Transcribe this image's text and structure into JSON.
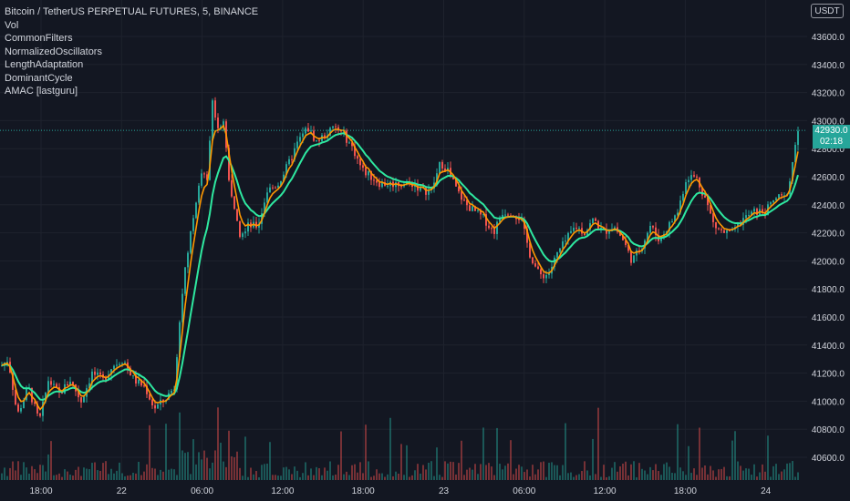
{
  "legend": {
    "title": "Bitcoin / TetherUS PERPETUAL FUTURES, 5, BINANCE",
    "indicators": [
      "Vol",
      "CommonFilters",
      "NormalizedOscillators",
      "LengthAdaptation",
      "DominantCycle",
      "AMAC [lastguru]"
    ]
  },
  "currency_button": "USDT",
  "last_price": {
    "price": "42930.0",
    "countdown": "02:18"
  },
  "colors": {
    "background": "#131722",
    "up": "#26a69a",
    "down": "#ef5350",
    "fast_line": "#ff9800",
    "slow_line": "#2ee8a0",
    "grid": "#1e222d",
    "text": "#d1d4dc"
  },
  "chart_data": {
    "type": "candlestick",
    "symbol": "Bitcoin / TetherUS PERPETUAL FUTURES",
    "interval": "5",
    "exchange": "BINANCE",
    "x_tick_labels": [
      "18:00",
      "22",
      "06:00",
      "12:00",
      "18:00",
      "23",
      "06:00",
      "12:00",
      "18:00",
      "24"
    ],
    "y_tick_labels": [
      40600,
      40800,
      41000,
      41200,
      41400,
      41600,
      41800,
      42000,
      42200,
      42400,
      42600,
      42800,
      43000,
      43200,
      43400,
      43600
    ],
    "ylim": [
      40500,
      43750
    ],
    "price_path": [
      [
        0,
        41250
      ],
      [
        8,
        41300
      ],
      [
        18,
        40900
      ],
      [
        30,
        41100
      ],
      [
        42,
        40850
      ],
      [
        52,
        41150
      ],
      [
        64,
        41050
      ],
      [
        76,
        41150
      ],
      [
        88,
        41000
      ],
      [
        100,
        41200
      ],
      [
        112,
        41150
      ],
      [
        122,
        41250
      ],
      [
        134,
        41300
      ],
      [
        146,
        41150
      ],
      [
        158,
        41100
      ],
      [
        168,
        40950
      ],
      [
        178,
        41000
      ],
      [
        190,
        41100
      ],
      [
        198,
        41750
      ],
      [
        208,
        42200
      ],
      [
        218,
        42600
      ],
      [
        226,
        42600
      ],
      [
        232,
        43150
      ],
      [
        238,
        42950
      ],
      [
        244,
        43000
      ],
      [
        250,
        42600
      ],
      [
        256,
        42350
      ],
      [
        262,
        42200
      ],
      [
        270,
        42250
      ],
      [
        282,
        42250
      ],
      [
        292,
        42500
      ],
      [
        304,
        42550
      ],
      [
        316,
        42700
      ],
      [
        326,
        42850
      ],
      [
        336,
        42950
      ],
      [
        346,
        42850
      ],
      [
        356,
        42900
      ],
      [
        366,
        42950
      ],
      [
        376,
        42900
      ],
      [
        386,
        42800
      ],
      [
        396,
        42650
      ],
      [
        406,
        42600
      ],
      [
        416,
        42550
      ],
      [
        428,
        42550
      ],
      [
        440,
        42550
      ],
      [
        452,
        42550
      ],
      [
        462,
        42500
      ],
      [
        472,
        42500
      ],
      [
        482,
        42700
      ],
      [
        490,
        42650
      ],
      [
        500,
        42500
      ],
      [
        510,
        42400
      ],
      [
        520,
        42350
      ],
      [
        530,
        42300
      ],
      [
        540,
        42200
      ],
      [
        550,
        42350
      ],
      [
        560,
        42350
      ],
      [
        570,
        42300
      ],
      [
        580,
        42050
      ],
      [
        590,
        41900
      ],
      [
        600,
        41900
      ],
      [
        610,
        42050
      ],
      [
        620,
        42150
      ],
      [
        630,
        42250
      ],
      [
        640,
        42200
      ],
      [
        650,
        42300
      ],
      [
        660,
        42200
      ],
      [
        672,
        42250
      ],
      [
        682,
        42150
      ],
      [
        692,
        42000
      ],
      [
        702,
        42100
      ],
      [
        712,
        42250
      ],
      [
        722,
        42150
      ],
      [
        732,
        42250
      ],
      [
        742,
        42350
      ],
      [
        752,
        42600
      ],
      [
        762,
        42600
      ],
      [
        772,
        42450
      ],
      [
        782,
        42250
      ],
      [
        792,
        42200
      ],
      [
        802,
        42200
      ],
      [
        814,
        42300
      ],
      [
        826,
        42350
      ],
      [
        838,
        42350
      ],
      [
        850,
        42450
      ],
      [
        860,
        42450
      ],
      [
        866,
        42600
      ],
      [
        870,
        42800
      ],
      [
        874,
        42930
      ]
    ],
    "series": [
      {
        "name": "AMAC fast",
        "color": "#ff9800"
      },
      {
        "name": "AMAC slow",
        "color": "#2ee8a0"
      }
    ],
    "volume": "shown as bars at bottom of pane",
    "last_price": 42930.0,
    "grid": true
  }
}
